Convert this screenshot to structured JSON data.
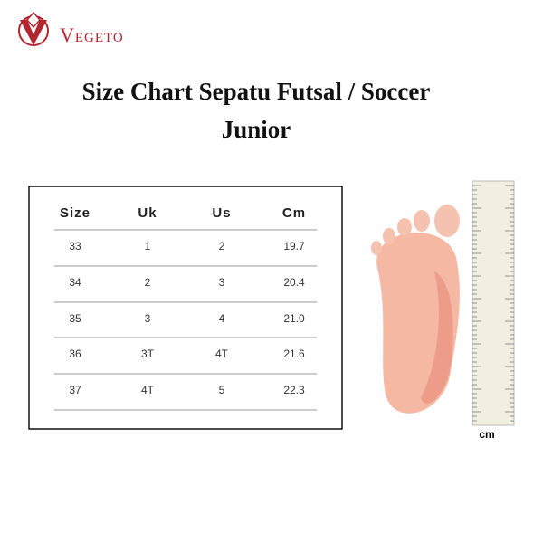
{
  "header": {
    "brand": "Vegeto",
    "title_line1": "Size Chart Sepatu Futsal / Soccer",
    "title_line2": "Junior"
  },
  "table": {
    "columns": [
      "Size",
      "Uk",
      "Us",
      "Cm"
    ],
    "rows": [
      [
        "33",
        "1",
        "2",
        "19.7"
      ],
      [
        "34",
        "2",
        "3",
        "20.4"
      ],
      [
        "35",
        "3",
        "4",
        "21.0"
      ],
      [
        "36",
        "3T",
        "4T",
        "21.6"
      ],
      [
        "37",
        "4T",
        "5",
        "22.3"
      ]
    ]
  },
  "ruler": {
    "unit": "cm"
  }
}
